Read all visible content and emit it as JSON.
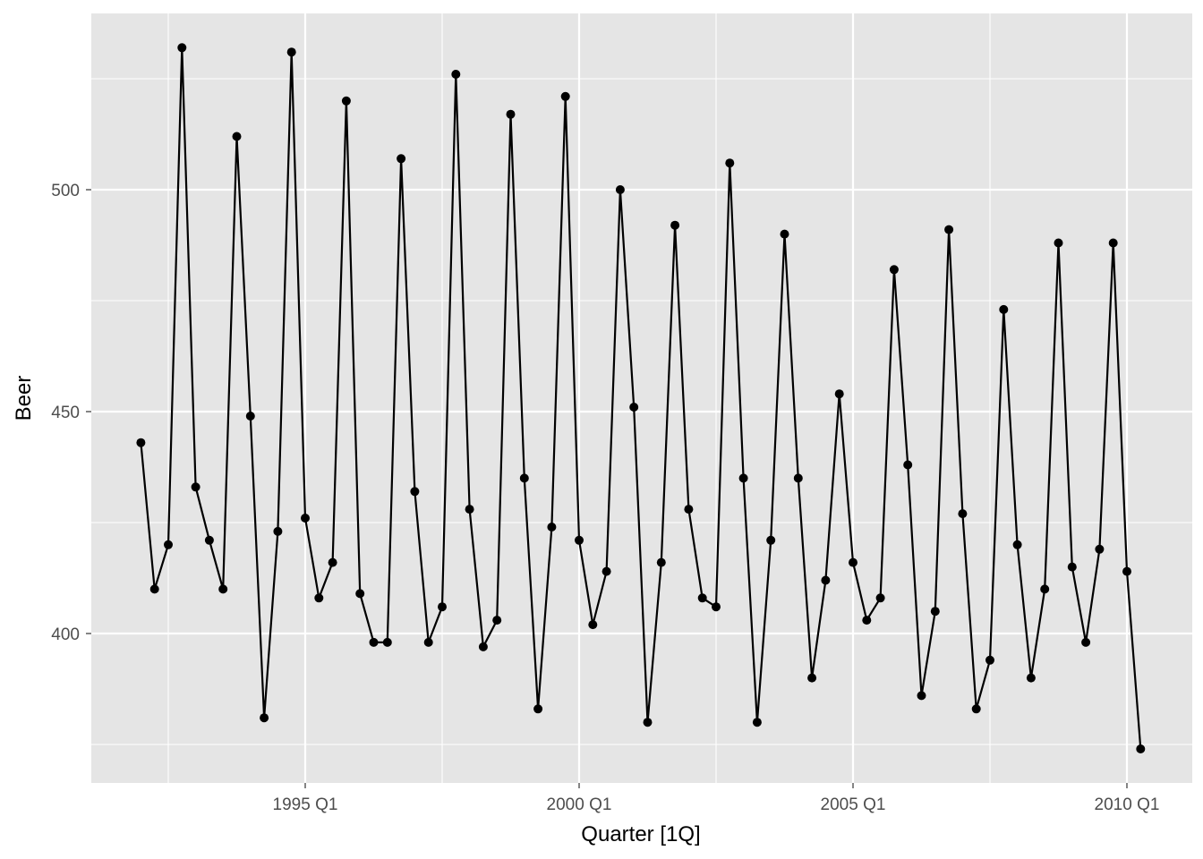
{
  "chart_data": {
    "type": "line",
    "title": "",
    "xlabel": "Quarter [1Q]",
    "ylabel": "Beer",
    "x_tick_labels": [
      "1995 Q1",
      "2000 Q1",
      "2005 Q1",
      "2010 Q1"
    ],
    "y_tick_labels": [
      "400",
      "450",
      "500"
    ],
    "y_ticks": [
      400,
      450,
      500
    ],
    "grid": true,
    "legend": "none",
    "markers": true,
    "colors": {
      "panel": "#e5e5e5",
      "grid": "#ffffff",
      "line": "#000000",
      "tick_text": "#4d4d4d"
    },
    "series": [
      {
        "x": [
          "1992 Q1",
          "1992 Q2",
          "1992 Q3",
          "1992 Q4",
          "1993 Q1",
          "1993 Q2",
          "1993 Q3",
          "1993 Q4",
          "1994 Q1",
          "1994 Q2",
          "1994 Q3",
          "1994 Q4",
          "1995 Q1",
          "1995 Q2",
          "1995 Q3",
          "1995 Q4",
          "1996 Q1",
          "1996 Q2",
          "1996 Q3",
          "1996 Q4",
          "1997 Q1",
          "1997 Q2",
          "1997 Q3",
          "1997 Q4",
          "1998 Q1",
          "1998 Q2",
          "1998 Q3",
          "1998 Q4",
          "1999 Q1",
          "1999 Q2",
          "1999 Q3",
          "1999 Q4",
          "2000 Q1",
          "2000 Q2",
          "2000 Q3",
          "2000 Q4",
          "2001 Q1",
          "2001 Q2",
          "2001 Q3",
          "2001 Q4",
          "2002 Q1",
          "2002 Q2",
          "2002 Q3",
          "2002 Q4",
          "2003 Q1",
          "2003 Q2",
          "2003 Q3",
          "2003 Q4",
          "2004 Q1",
          "2004 Q2",
          "2004 Q3",
          "2004 Q4",
          "2005 Q1",
          "2005 Q2",
          "2005 Q3",
          "2005 Q4",
          "2006 Q1",
          "2006 Q2",
          "2006 Q3",
          "2006 Q4",
          "2007 Q1",
          "2007 Q2",
          "2007 Q3",
          "2007 Q4",
          "2008 Q1",
          "2008 Q2",
          "2008 Q3",
          "2008 Q4",
          "2009 Q1",
          "2009 Q2",
          "2009 Q3",
          "2009 Q4",
          "2010 Q1",
          "2010 Q2"
        ],
        "values": [
          443,
          410,
          420,
          532,
          433,
          421,
          410,
          512,
          449,
          381,
          423,
          531,
          426,
          408,
          416,
          520,
          409,
          398,
          398,
          507,
          432,
          398,
          406,
          526,
          428,
          397,
          403,
          517,
          435,
          383,
          424,
          521,
          421,
          402,
          414,
          500,
          451,
          380,
          416,
          492,
          428,
          408,
          406,
          506,
          435,
          380,
          421,
          490,
          435,
          390,
          412,
          454,
          416,
          403,
          408,
          482,
          438,
          386,
          405,
          491,
          427,
          383,
          394,
          473,
          420,
          390,
          410,
          488,
          415,
          398,
          419,
          488,
          414,
          374
        ]
      }
    ]
  }
}
